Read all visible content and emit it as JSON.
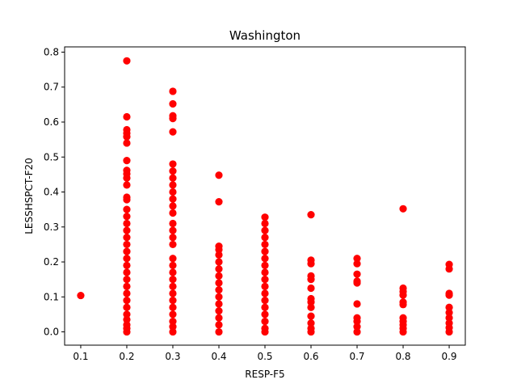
{
  "chart_data": {
    "type": "scatter",
    "title": "Washington",
    "xlabel": "RESP-F5",
    "ylabel": "LESSHSPCT-F20",
    "xlim": [
      0.065,
      0.935
    ],
    "ylim": [
      -0.038,
      0.815
    ],
    "xticks": [
      "0.1",
      "0.2",
      "0.3",
      "0.4",
      "0.5",
      "0.6",
      "0.7",
      "0.8",
      "0.9"
    ],
    "yticks": [
      "0.0",
      "0.1",
      "0.2",
      "0.3",
      "0.4",
      "0.5",
      "0.6",
      "0.7",
      "0.8"
    ],
    "grid": false,
    "marker_color": "#ff0000",
    "series": [
      {
        "points": [
          [
            0.1,
            0.104
          ],
          [
            0.2,
            0.775
          ],
          [
            0.2,
            0.615
          ],
          [
            0.2,
            0.578
          ],
          [
            0.2,
            0.568
          ],
          [
            0.2,
            0.558
          ],
          [
            0.2,
            0.54
          ],
          [
            0.2,
            0.49
          ],
          [
            0.2,
            0.462
          ],
          [
            0.2,
            0.452
          ],
          [
            0.2,
            0.44
          ],
          [
            0.2,
            0.42
          ],
          [
            0.2,
            0.385
          ],
          [
            0.2,
            0.378
          ],
          [
            0.2,
            0.35
          ],
          [
            0.2,
            0.33
          ],
          [
            0.2,
            0.31
          ],
          [
            0.2,
            0.29
          ],
          [
            0.2,
            0.27
          ],
          [
            0.2,
            0.25
          ],
          [
            0.2,
            0.23
          ],
          [
            0.2,
            0.21
          ],
          [
            0.2,
            0.19
          ],
          [
            0.2,
            0.17
          ],
          [
            0.2,
            0.15
          ],
          [
            0.2,
            0.13
          ],
          [
            0.2,
            0.11
          ],
          [
            0.2,
            0.09
          ],
          [
            0.2,
            0.07
          ],
          [
            0.2,
            0.05
          ],
          [
            0.2,
            0.035
          ],
          [
            0.2,
            0.02
          ],
          [
            0.2,
            0.01
          ],
          [
            0.2,
            0.0
          ],
          [
            0.3,
            0.688
          ],
          [
            0.3,
            0.652
          ],
          [
            0.3,
            0.618
          ],
          [
            0.3,
            0.61
          ],
          [
            0.3,
            0.572
          ],
          [
            0.3,
            0.48
          ],
          [
            0.3,
            0.46
          ],
          [
            0.3,
            0.44
          ],
          [
            0.3,
            0.42
          ],
          [
            0.3,
            0.4
          ],
          [
            0.3,
            0.38
          ],
          [
            0.3,
            0.36
          ],
          [
            0.3,
            0.34
          ],
          [
            0.3,
            0.31
          ],
          [
            0.3,
            0.29
          ],
          [
            0.3,
            0.27
          ],
          [
            0.3,
            0.25
          ],
          [
            0.3,
            0.21
          ],
          [
            0.3,
            0.19
          ],
          [
            0.3,
            0.17
          ],
          [
            0.3,
            0.15
          ],
          [
            0.3,
            0.13
          ],
          [
            0.3,
            0.11
          ],
          [
            0.3,
            0.09
          ],
          [
            0.3,
            0.07
          ],
          [
            0.3,
            0.05
          ],
          [
            0.3,
            0.03
          ],
          [
            0.3,
            0.015
          ],
          [
            0.3,
            0.0
          ],
          [
            0.4,
            0.448
          ],
          [
            0.4,
            0.372
          ],
          [
            0.4,
            0.245
          ],
          [
            0.4,
            0.235
          ],
          [
            0.4,
            0.22
          ],
          [
            0.4,
            0.2
          ],
          [
            0.4,
            0.18
          ],
          [
            0.4,
            0.16
          ],
          [
            0.4,
            0.14
          ],
          [
            0.4,
            0.12
          ],
          [
            0.4,
            0.1
          ],
          [
            0.4,
            0.08
          ],
          [
            0.4,
            0.06
          ],
          [
            0.4,
            0.04
          ],
          [
            0.4,
            0.02
          ],
          [
            0.4,
            0.0
          ],
          [
            0.5,
            0.328
          ],
          [
            0.5,
            0.31
          ],
          [
            0.5,
            0.29
          ],
          [
            0.5,
            0.27
          ],
          [
            0.5,
            0.25
          ],
          [
            0.5,
            0.23
          ],
          [
            0.5,
            0.21
          ],
          [
            0.5,
            0.19
          ],
          [
            0.5,
            0.17
          ],
          [
            0.5,
            0.15
          ],
          [
            0.5,
            0.13
          ],
          [
            0.5,
            0.11
          ],
          [
            0.5,
            0.09
          ],
          [
            0.5,
            0.07
          ],
          [
            0.5,
            0.05
          ],
          [
            0.5,
            0.03
          ],
          [
            0.5,
            0.01
          ],
          [
            0.5,
            0.0
          ],
          [
            0.6,
            0.335
          ],
          [
            0.6,
            0.205
          ],
          [
            0.6,
            0.195
          ],
          [
            0.6,
            0.16
          ],
          [
            0.6,
            0.15
          ],
          [
            0.6,
            0.125
          ],
          [
            0.6,
            0.095
          ],
          [
            0.6,
            0.085
          ],
          [
            0.6,
            0.07
          ],
          [
            0.6,
            0.045
          ],
          [
            0.6,
            0.025
          ],
          [
            0.6,
            0.01
          ],
          [
            0.6,
            0.0
          ],
          [
            0.7,
            0.21
          ],
          [
            0.7,
            0.195
          ],
          [
            0.7,
            0.165
          ],
          [
            0.7,
            0.145
          ],
          [
            0.7,
            0.14
          ],
          [
            0.7,
            0.08
          ],
          [
            0.7,
            0.04
          ],
          [
            0.7,
            0.03
          ],
          [
            0.7,
            0.015
          ],
          [
            0.7,
            0.0
          ],
          [
            0.8,
            0.352
          ],
          [
            0.8,
            0.125
          ],
          [
            0.8,
            0.115
          ],
          [
            0.8,
            0.105
          ],
          [
            0.8,
            0.085
          ],
          [
            0.8,
            0.078
          ],
          [
            0.8,
            0.04
          ],
          [
            0.8,
            0.03
          ],
          [
            0.8,
            0.02
          ],
          [
            0.8,
            0.01
          ],
          [
            0.8,
            0.0
          ],
          [
            0.9,
            0.193
          ],
          [
            0.9,
            0.18
          ],
          [
            0.9,
            0.11
          ],
          [
            0.9,
            0.105
          ],
          [
            0.9,
            0.07
          ],
          [
            0.9,
            0.055
          ],
          [
            0.9,
            0.04
          ],
          [
            0.9,
            0.025
          ],
          [
            0.9,
            0.012
          ],
          [
            0.9,
            0.0
          ]
        ]
      }
    ]
  }
}
